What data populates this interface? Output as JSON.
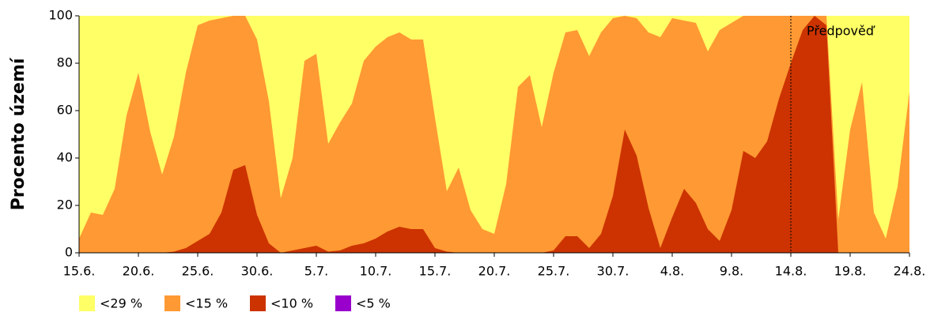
{
  "chart_data": {
    "type": "area",
    "y_label": "Procento území",
    "annotation": {
      "text": "Předpověď",
      "at": "14.8."
    },
    "categories": [
      "15.6.",
      null,
      null,
      null,
      null,
      "20.6.",
      null,
      null,
      null,
      null,
      "25.6.",
      null,
      null,
      null,
      null,
      "30.6.",
      null,
      null,
      null,
      null,
      "5.7.",
      null,
      null,
      null,
      null,
      "10.7.",
      null,
      null,
      null,
      null,
      "15.7.",
      null,
      null,
      null,
      null,
      "20.7.",
      null,
      null,
      null,
      null,
      "25.7.",
      null,
      null,
      null,
      null,
      "30.7.",
      null,
      null,
      null,
      null,
      "4.8.",
      null,
      null,
      null,
      null,
      "9.8.",
      null,
      null,
      null,
      null,
      "14.8.",
      null,
      null,
      null,
      null,
      "19.8.",
      null,
      null,
      null,
      null,
      "24.8."
    ],
    "ylim": [
      0,
      100
    ],
    "yticks": [
      0,
      20,
      40,
      60,
      80,
      100
    ],
    "series": [
      {
        "name": "<29 %",
        "color": "#ffff66",
        "values": [
          100,
          100,
          100,
          100,
          100,
          100,
          100,
          100,
          100,
          100,
          100,
          100,
          100,
          100,
          100,
          100,
          100,
          100,
          100,
          100,
          100,
          100,
          100,
          100,
          100,
          100,
          100,
          100,
          100,
          100,
          100,
          100,
          100,
          100,
          100,
          100,
          100,
          100,
          100,
          100,
          100,
          100,
          100,
          100,
          100,
          100,
          100,
          100,
          100,
          100,
          100,
          100,
          100,
          100,
          100,
          100,
          100,
          100,
          100,
          100,
          100,
          100,
          100,
          100,
          100,
          100,
          100,
          100,
          100,
          100,
          100
        ]
      },
      {
        "name": "<15 %",
        "color": "#ff9933",
        "values": [
          6,
          17,
          16,
          27,
          58,
          76,
          51,
          33,
          49,
          76,
          96,
          98,
          99,
          100,
          100,
          90,
          64,
          23,
          40,
          81,
          84,
          46,
          55,
          63,
          81,
          87,
          91,
          93,
          90,
          90,
          57,
          26,
          36,
          18,
          10,
          8,
          29,
          70,
          75,
          53,
          76,
          93,
          94,
          83,
          93,
          99,
          100,
          99,
          93,
          91,
          99,
          98,
          97,
          85,
          94,
          97,
          100,
          100,
          100,
          100,
          100,
          100,
          100,
          100,
          14,
          52,
          72,
          17,
          6,
          28,
          68
        ]
      },
      {
        "name": "<10 %",
        "color": "#cc3300",
        "values": [
          0,
          0,
          0,
          0,
          0,
          0,
          0,
          0,
          0.5,
          2,
          5,
          8,
          17,
          35,
          37,
          16,
          4,
          0,
          1,
          2,
          3,
          0.5,
          1,
          3,
          4,
          6,
          9,
          11,
          10,
          10,
          2,
          0.5,
          0,
          0,
          0,
          0,
          0,
          0,
          0,
          0,
          1,
          7,
          7,
          2,
          8,
          24,
          52,
          41,
          19,
          2,
          15,
          27,
          21,
          10,
          5,
          18,
          43,
          40,
          47,
          65,
          80,
          94,
          100,
          96,
          0,
          0,
          0,
          0,
          0,
          0,
          0
        ]
      },
      {
        "name": "<5 %",
        "color": "#9900cc",
        "values": [
          0,
          0,
          0,
          0,
          0,
          0,
          0,
          0,
          0,
          0,
          0,
          0,
          0,
          0,
          0,
          0,
          0,
          0,
          0,
          0,
          0,
          0,
          0,
          0,
          0,
          0,
          0,
          0,
          0,
          0,
          0,
          0,
          0,
          0,
          0,
          0,
          0,
          0,
          0,
          0,
          0,
          0,
          0,
          0,
          0,
          0,
          0,
          0,
          0,
          0,
          0,
          0,
          0,
          0,
          0,
          0,
          0,
          0,
          0,
          0,
          0,
          0,
          0,
          0,
          0,
          0,
          0,
          0,
          0,
          0,
          0
        ]
      }
    ]
  }
}
